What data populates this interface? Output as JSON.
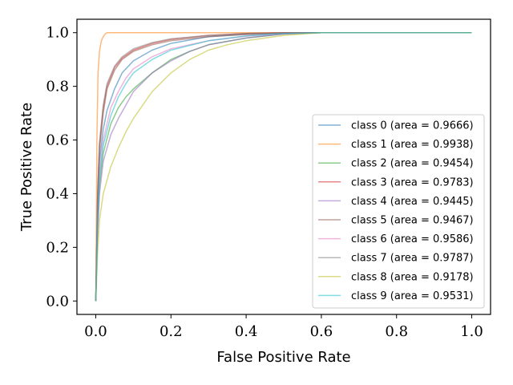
{
  "chart_data": {
    "type": "line",
    "title": "",
    "xlabel": "False Positive Rate",
    "ylabel": "True Positive Rate",
    "xlim": [
      -0.05,
      1.05
    ],
    "ylim": [
      -0.05,
      1.05
    ],
    "xticks": [
      0.0,
      0.2,
      0.4,
      0.6,
      0.8,
      1.0
    ],
    "yticks": [
      0.0,
      0.2,
      0.4,
      0.6,
      0.8,
      1.0
    ],
    "xtick_labels": [
      "0.0",
      "0.2",
      "0.4",
      "0.6",
      "0.8",
      "1.0"
    ],
    "ytick_labels": [
      "0.0",
      "0.2",
      "0.4",
      "0.6",
      "0.8",
      "1.0"
    ],
    "grid": false,
    "legend_position": "center-right",
    "series": [
      {
        "name": "class 0 (area = 0.9666)",
        "color": "#1f77b4",
        "x": [
          0,
          0.005,
          0.01,
          0.02,
          0.03,
          0.05,
          0.07,
          0.1,
          0.15,
          0.2,
          0.3,
          0.4,
          0.5,
          0.6,
          1.0
        ],
        "y": [
          0,
          0.35,
          0.52,
          0.64,
          0.71,
          0.79,
          0.85,
          0.895,
          0.935,
          0.96,
          0.985,
          0.995,
          0.999,
          1.0,
          1.0
        ]
      },
      {
        "name": "class 1 (area = 0.9938)",
        "color": "#ff7f0e",
        "x": [
          0,
          0.003,
          0.006,
          0.01,
          0.015,
          0.02,
          0.025,
          0.03,
          1.0
        ],
        "y": [
          0,
          0.6,
          0.85,
          0.93,
          0.97,
          0.985,
          0.995,
          1.0,
          1.0
        ]
      },
      {
        "name": "class 2 (area = 0.9454)",
        "color": "#2ca02c",
        "x": [
          0,
          0.005,
          0.01,
          0.02,
          0.04,
          0.06,
          0.08,
          0.1,
          0.15,
          0.2,
          0.25,
          0.3,
          0.4,
          0.5,
          0.6,
          1.0
        ],
        "y": [
          0,
          0.28,
          0.43,
          0.55,
          0.66,
          0.72,
          0.76,
          0.79,
          0.85,
          0.9,
          0.93,
          0.955,
          0.98,
          0.995,
          1.0,
          1.0
        ]
      },
      {
        "name": "class 3 (area = 0.9783)",
        "color": "#d62728",
        "x": [
          0,
          0.005,
          0.01,
          0.02,
          0.03,
          0.05,
          0.07,
          0.1,
          0.15,
          0.2,
          0.3,
          0.4,
          0.5,
          1.0
        ],
        "y": [
          0,
          0.4,
          0.58,
          0.72,
          0.8,
          0.87,
          0.905,
          0.935,
          0.96,
          0.975,
          0.99,
          0.997,
          1.0,
          1.0
        ]
      },
      {
        "name": "class 4 (area = 0.9445)",
        "color": "#9467bd",
        "x": [
          0,
          0.005,
          0.01,
          0.02,
          0.04,
          0.06,
          0.08,
          0.1,
          0.15,
          0.2,
          0.25,
          0.3,
          0.4,
          0.5,
          0.6,
          1.0
        ],
        "y": [
          0,
          0.25,
          0.4,
          0.52,
          0.62,
          0.68,
          0.73,
          0.78,
          0.85,
          0.895,
          0.93,
          0.955,
          0.98,
          0.995,
          1.0,
          1.0
        ]
      },
      {
        "name": "class 5 (area = 0.9467)",
        "color": "#8c564b",
        "x": [
          0,
          0.005,
          0.01,
          0.02,
          0.03,
          0.05,
          0.07,
          0.1,
          0.15,
          0.2,
          0.3,
          0.4,
          0.5,
          0.6,
          1.0
        ],
        "y": [
          0,
          0.38,
          0.56,
          0.7,
          0.79,
          0.86,
          0.9,
          0.93,
          0.955,
          0.97,
          0.985,
          0.993,
          0.998,
          1.0,
          1.0
        ]
      },
      {
        "name": "class 6 (area = 0.9586)",
        "color": "#e377c2",
        "x": [
          0,
          0.005,
          0.01,
          0.02,
          0.04,
          0.06,
          0.08,
          0.1,
          0.15,
          0.2,
          0.3,
          0.4,
          0.5,
          0.6,
          1.0
        ],
        "y": [
          0,
          0.32,
          0.48,
          0.6,
          0.72,
          0.78,
          0.83,
          0.865,
          0.91,
          0.94,
          0.97,
          0.987,
          0.996,
          1.0,
          1.0
        ]
      },
      {
        "name": "class 7 (area = 0.9787)",
        "color": "#7f7f7f",
        "x": [
          0,
          0.005,
          0.01,
          0.02,
          0.03,
          0.05,
          0.07,
          0.1,
          0.15,
          0.2,
          0.3,
          0.4,
          0.5,
          1.0
        ],
        "y": [
          0,
          0.4,
          0.59,
          0.73,
          0.81,
          0.875,
          0.91,
          0.94,
          0.963,
          0.977,
          0.99,
          0.997,
          1.0,
          1.0
        ]
      },
      {
        "name": "class 8 (area = 0.9178)",
        "color": "#bcbd22",
        "x": [
          0,
          0.005,
          0.01,
          0.02,
          0.04,
          0.06,
          0.08,
          0.1,
          0.12,
          0.15,
          0.2,
          0.25,
          0.3,
          0.35,
          0.4,
          0.5,
          0.6,
          1.0
        ],
        "y": [
          0,
          0.18,
          0.3,
          0.4,
          0.5,
          0.57,
          0.63,
          0.68,
          0.72,
          0.78,
          0.85,
          0.9,
          0.935,
          0.955,
          0.97,
          0.99,
          1.0,
          1.0
        ]
      },
      {
        "name": "class 9 (area = 0.9531)",
        "color": "#17becf",
        "x": [
          0,
          0.005,
          0.01,
          0.02,
          0.04,
          0.06,
          0.08,
          0.1,
          0.15,
          0.2,
          0.3,
          0.4,
          0.5,
          0.6,
          1.0
        ],
        "y": [
          0,
          0.3,
          0.46,
          0.58,
          0.69,
          0.76,
          0.81,
          0.85,
          0.9,
          0.935,
          0.97,
          0.988,
          0.997,
          1.0,
          1.0
        ]
      }
    ]
  }
}
